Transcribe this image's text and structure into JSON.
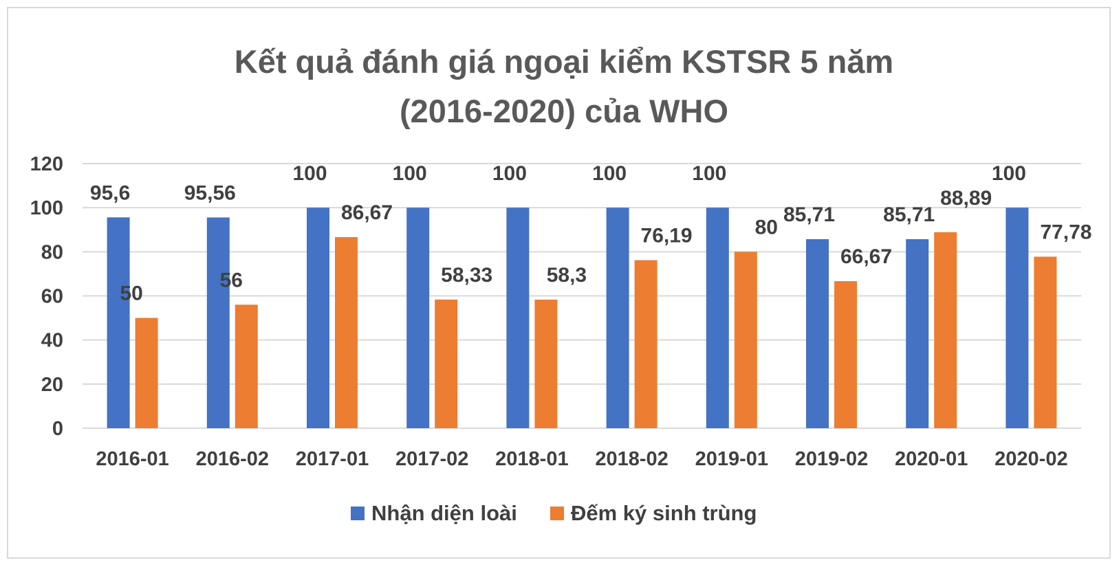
{
  "chart_data": {
    "type": "bar",
    "title": "Kết quả đánh giá ngoại kiểm KSTSR 5 năm",
    "subtitle": "(2016-2020) của WHO",
    "xlabel": "",
    "ylabel": "",
    "ylim": [
      0,
      120
    ],
    "yticks": [
      "0",
      "20",
      "40",
      "60",
      "80",
      "100",
      "120"
    ],
    "categories": [
      "2016-01",
      "2016-02",
      "2017-01",
      "2017-02",
      "2018-01",
      "2018-02",
      "2019-01",
      "2019-02",
      "2020-01",
      "2020-02"
    ],
    "series": [
      {
        "name": "Nhận diện loài",
        "color": "#4472c4",
        "values": [
          95.6,
          95.56,
          100,
          100,
          100,
          100,
          100,
          85.71,
          85.71,
          100
        ],
        "labels": [
          "95,6",
          "95,56",
          "100",
          "100",
          "100",
          "100",
          "100",
          "85,71",
          "85,71",
          "100"
        ]
      },
      {
        "name": "Đếm ký sinh trùng",
        "color": "#ed7d31",
        "values": [
          50,
          56,
          86.67,
          58.33,
          58.3,
          76.19,
          80,
          66.67,
          88.89,
          77.78
        ],
        "labels": [
          "50",
          "56",
          "86,67",
          "58,33",
          "58,3",
          "76,19",
          "80",
          "66,67",
          "88,89",
          "77,78"
        ]
      }
    ],
    "grid": true,
    "legend_position": "bottom"
  }
}
